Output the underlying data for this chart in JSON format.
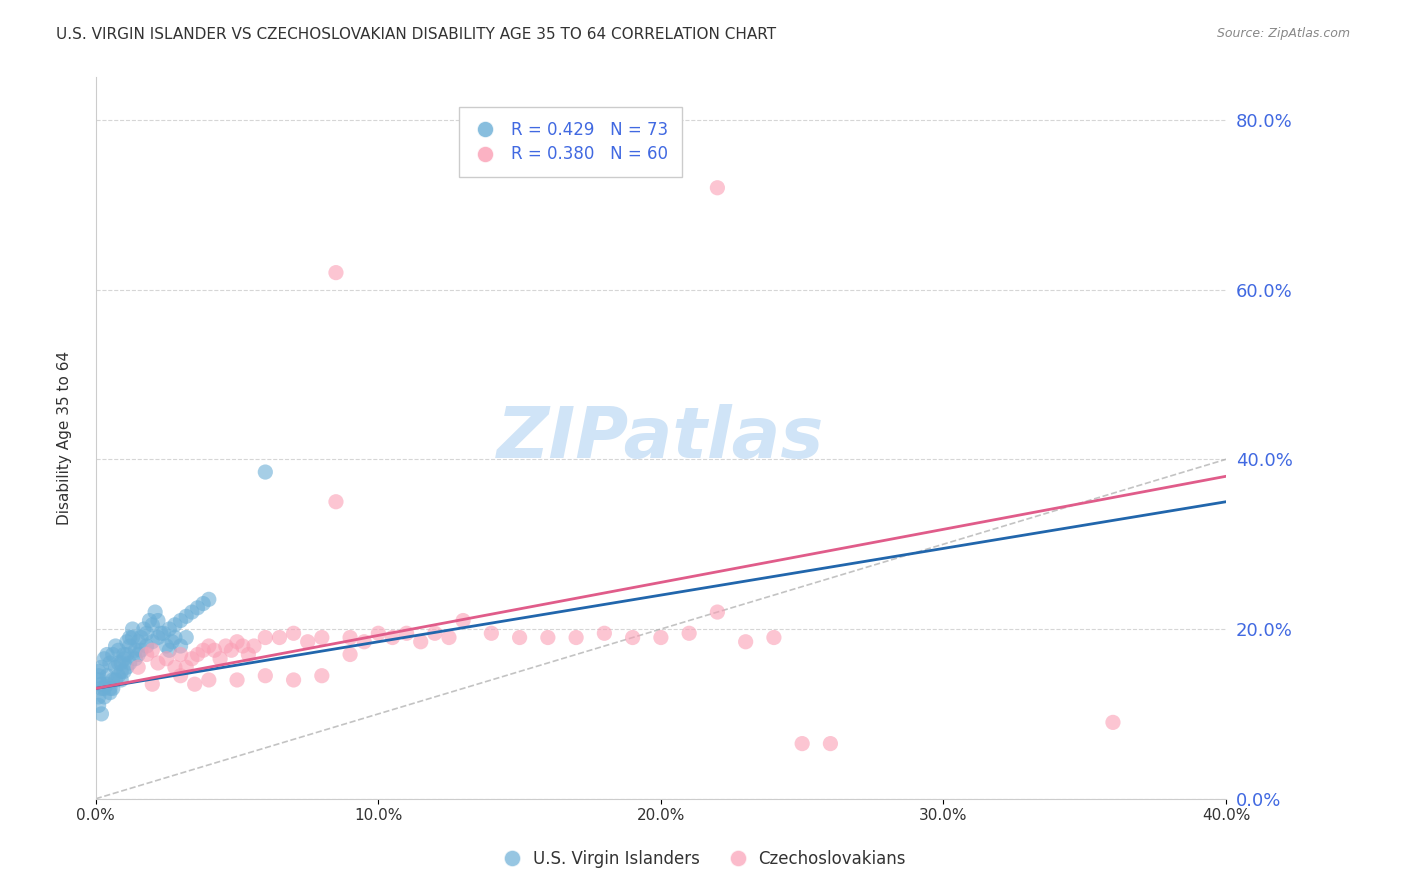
{
  "title": "U.S. VIRGIN ISLANDER VS CZECHOSLOVAKIAN DISABILITY AGE 35 TO 64 CORRELATION CHART",
  "source": "Source: ZipAtlas.com",
  "xlabel": "",
  "ylabel": "Disability Age 35 to 64",
  "xlim": [
    0.0,
    0.4
  ],
  "ylim": [
    0.0,
    0.85
  ],
  "yticks": [
    0.0,
    0.2,
    0.4,
    0.6,
    0.8
  ],
  "xticks": [
    0.0,
    0.1,
    0.2,
    0.3,
    0.4
  ],
  "legend_r1": "R = 0.429",
  "legend_n1": "N = 73",
  "legend_r2": "R = 0.380",
  "legend_n2": "N = 60",
  "blue_color": "#6baed6",
  "pink_color": "#fa9fb5",
  "blue_line_color": "#2166ac",
  "pink_line_color": "#e05c8a",
  "right_axis_color": "#4169e1",
  "watermark_color": "#d0e4f7",
  "blue_scatter": [
    [
      0.002,
      0.135
    ],
    [
      0.003,
      0.12
    ],
    [
      0.004,
      0.145
    ],
    [
      0.005,
      0.13
    ],
    [
      0.006,
      0.14
    ],
    [
      0.007,
      0.155
    ],
    [
      0.008,
      0.16
    ],
    [
      0.009,
      0.15
    ],
    [
      0.01,
      0.165
    ],
    [
      0.011,
      0.17
    ],
    [
      0.012,
      0.18
    ],
    [
      0.013,
      0.19
    ],
    [
      0.014,
      0.175
    ],
    [
      0.015,
      0.185
    ],
    [
      0.016,
      0.19
    ],
    [
      0.017,
      0.2
    ],
    [
      0.018,
      0.195
    ],
    [
      0.019,
      0.21
    ],
    [
      0.02,
      0.205
    ],
    [
      0.021,
      0.22
    ],
    [
      0.022,
      0.21
    ],
    [
      0.023,
      0.195
    ],
    [
      0.025,
      0.18
    ],
    [
      0.026,
      0.175
    ],
    [
      0.027,
      0.185
    ],
    [
      0.028,
      0.19
    ],
    [
      0.03,
      0.18
    ],
    [
      0.032,
      0.19
    ],
    [
      0.002,
      0.155
    ],
    [
      0.003,
      0.165
    ],
    [
      0.004,
      0.17
    ],
    [
      0.005,
      0.16
    ],
    [
      0.006,
      0.17
    ],
    [
      0.007,
      0.18
    ],
    [
      0.008,
      0.175
    ],
    [
      0.009,
      0.16
    ],
    [
      0.01,
      0.17
    ],
    [
      0.011,
      0.185
    ],
    [
      0.012,
      0.19
    ],
    [
      0.013,
      0.2
    ],
    [
      0.001,
      0.15
    ],
    [
      0.001,
      0.145
    ],
    [
      0.001,
      0.14
    ],
    [
      0.002,
      0.13
    ],
    [
      0.003,
      0.13
    ],
    [
      0.004,
      0.135
    ],
    [
      0.005,
      0.125
    ],
    [
      0.006,
      0.13
    ],
    [
      0.007,
      0.14
    ],
    [
      0.008,
      0.145
    ],
    [
      0.009,
      0.14
    ],
    [
      0.01,
      0.15
    ],
    [
      0.011,
      0.155
    ],
    [
      0.012,
      0.16
    ],
    [
      0.014,
      0.165
    ],
    [
      0.015,
      0.17
    ],
    [
      0.016,
      0.175
    ],
    [
      0.018,
      0.18
    ],
    [
      0.02,
      0.185
    ],
    [
      0.022,
      0.19
    ],
    [
      0.024,
      0.195
    ],
    [
      0.026,
      0.2
    ],
    [
      0.028,
      0.205
    ],
    [
      0.03,
      0.21
    ],
    [
      0.032,
      0.215
    ],
    [
      0.034,
      0.22
    ],
    [
      0.036,
      0.225
    ],
    [
      0.038,
      0.23
    ],
    [
      0.04,
      0.235
    ],
    [
      0.001,
      0.12
    ],
    [
      0.001,
      0.11
    ],
    [
      0.002,
      0.1
    ],
    [
      0.06,
      0.385
    ]
  ],
  "pink_scatter": [
    [
      0.015,
      0.155
    ],
    [
      0.018,
      0.17
    ],
    [
      0.02,
      0.175
    ],
    [
      0.022,
      0.16
    ],
    [
      0.025,
      0.165
    ],
    [
      0.028,
      0.155
    ],
    [
      0.03,
      0.17
    ],
    [
      0.032,
      0.155
    ],
    [
      0.034,
      0.165
    ],
    [
      0.036,
      0.17
    ],
    [
      0.038,
      0.175
    ],
    [
      0.04,
      0.18
    ],
    [
      0.042,
      0.175
    ],
    [
      0.044,
      0.165
    ],
    [
      0.046,
      0.18
    ],
    [
      0.048,
      0.175
    ],
    [
      0.05,
      0.185
    ],
    [
      0.052,
      0.18
    ],
    [
      0.054,
      0.17
    ],
    [
      0.056,
      0.18
    ],
    [
      0.06,
      0.19
    ],
    [
      0.065,
      0.19
    ],
    [
      0.07,
      0.195
    ],
    [
      0.075,
      0.185
    ],
    [
      0.08,
      0.19
    ],
    [
      0.085,
      0.35
    ],
    [
      0.09,
      0.19
    ],
    [
      0.095,
      0.185
    ],
    [
      0.1,
      0.195
    ],
    [
      0.105,
      0.19
    ],
    [
      0.11,
      0.195
    ],
    [
      0.115,
      0.185
    ],
    [
      0.12,
      0.195
    ],
    [
      0.125,
      0.19
    ],
    [
      0.13,
      0.21
    ],
    [
      0.14,
      0.195
    ],
    [
      0.15,
      0.19
    ],
    [
      0.16,
      0.19
    ],
    [
      0.17,
      0.19
    ],
    [
      0.18,
      0.195
    ],
    [
      0.19,
      0.19
    ],
    [
      0.2,
      0.19
    ],
    [
      0.21,
      0.195
    ],
    [
      0.22,
      0.22
    ],
    [
      0.23,
      0.185
    ],
    [
      0.24,
      0.19
    ],
    [
      0.25,
      0.065
    ],
    [
      0.26,
      0.065
    ],
    [
      0.03,
      0.145
    ],
    [
      0.04,
      0.14
    ],
    [
      0.05,
      0.14
    ],
    [
      0.06,
      0.145
    ],
    [
      0.07,
      0.14
    ],
    [
      0.08,
      0.145
    ],
    [
      0.085,
      0.62
    ],
    [
      0.09,
      0.17
    ],
    [
      0.02,
      0.135
    ],
    [
      0.035,
      0.135
    ],
    [
      0.36,
      0.09
    ],
    [
      0.22,
      0.72
    ]
  ],
  "blue_line_x": [
    0.0,
    0.4
  ],
  "blue_line_y": [
    0.13,
    0.35
  ],
  "pink_line_x": [
    0.0,
    0.4
  ],
  "pink_line_y": [
    0.13,
    0.38
  ],
  "ref_line_x": [
    0.0,
    0.85
  ],
  "ref_line_y": [
    0.0,
    0.85
  ]
}
